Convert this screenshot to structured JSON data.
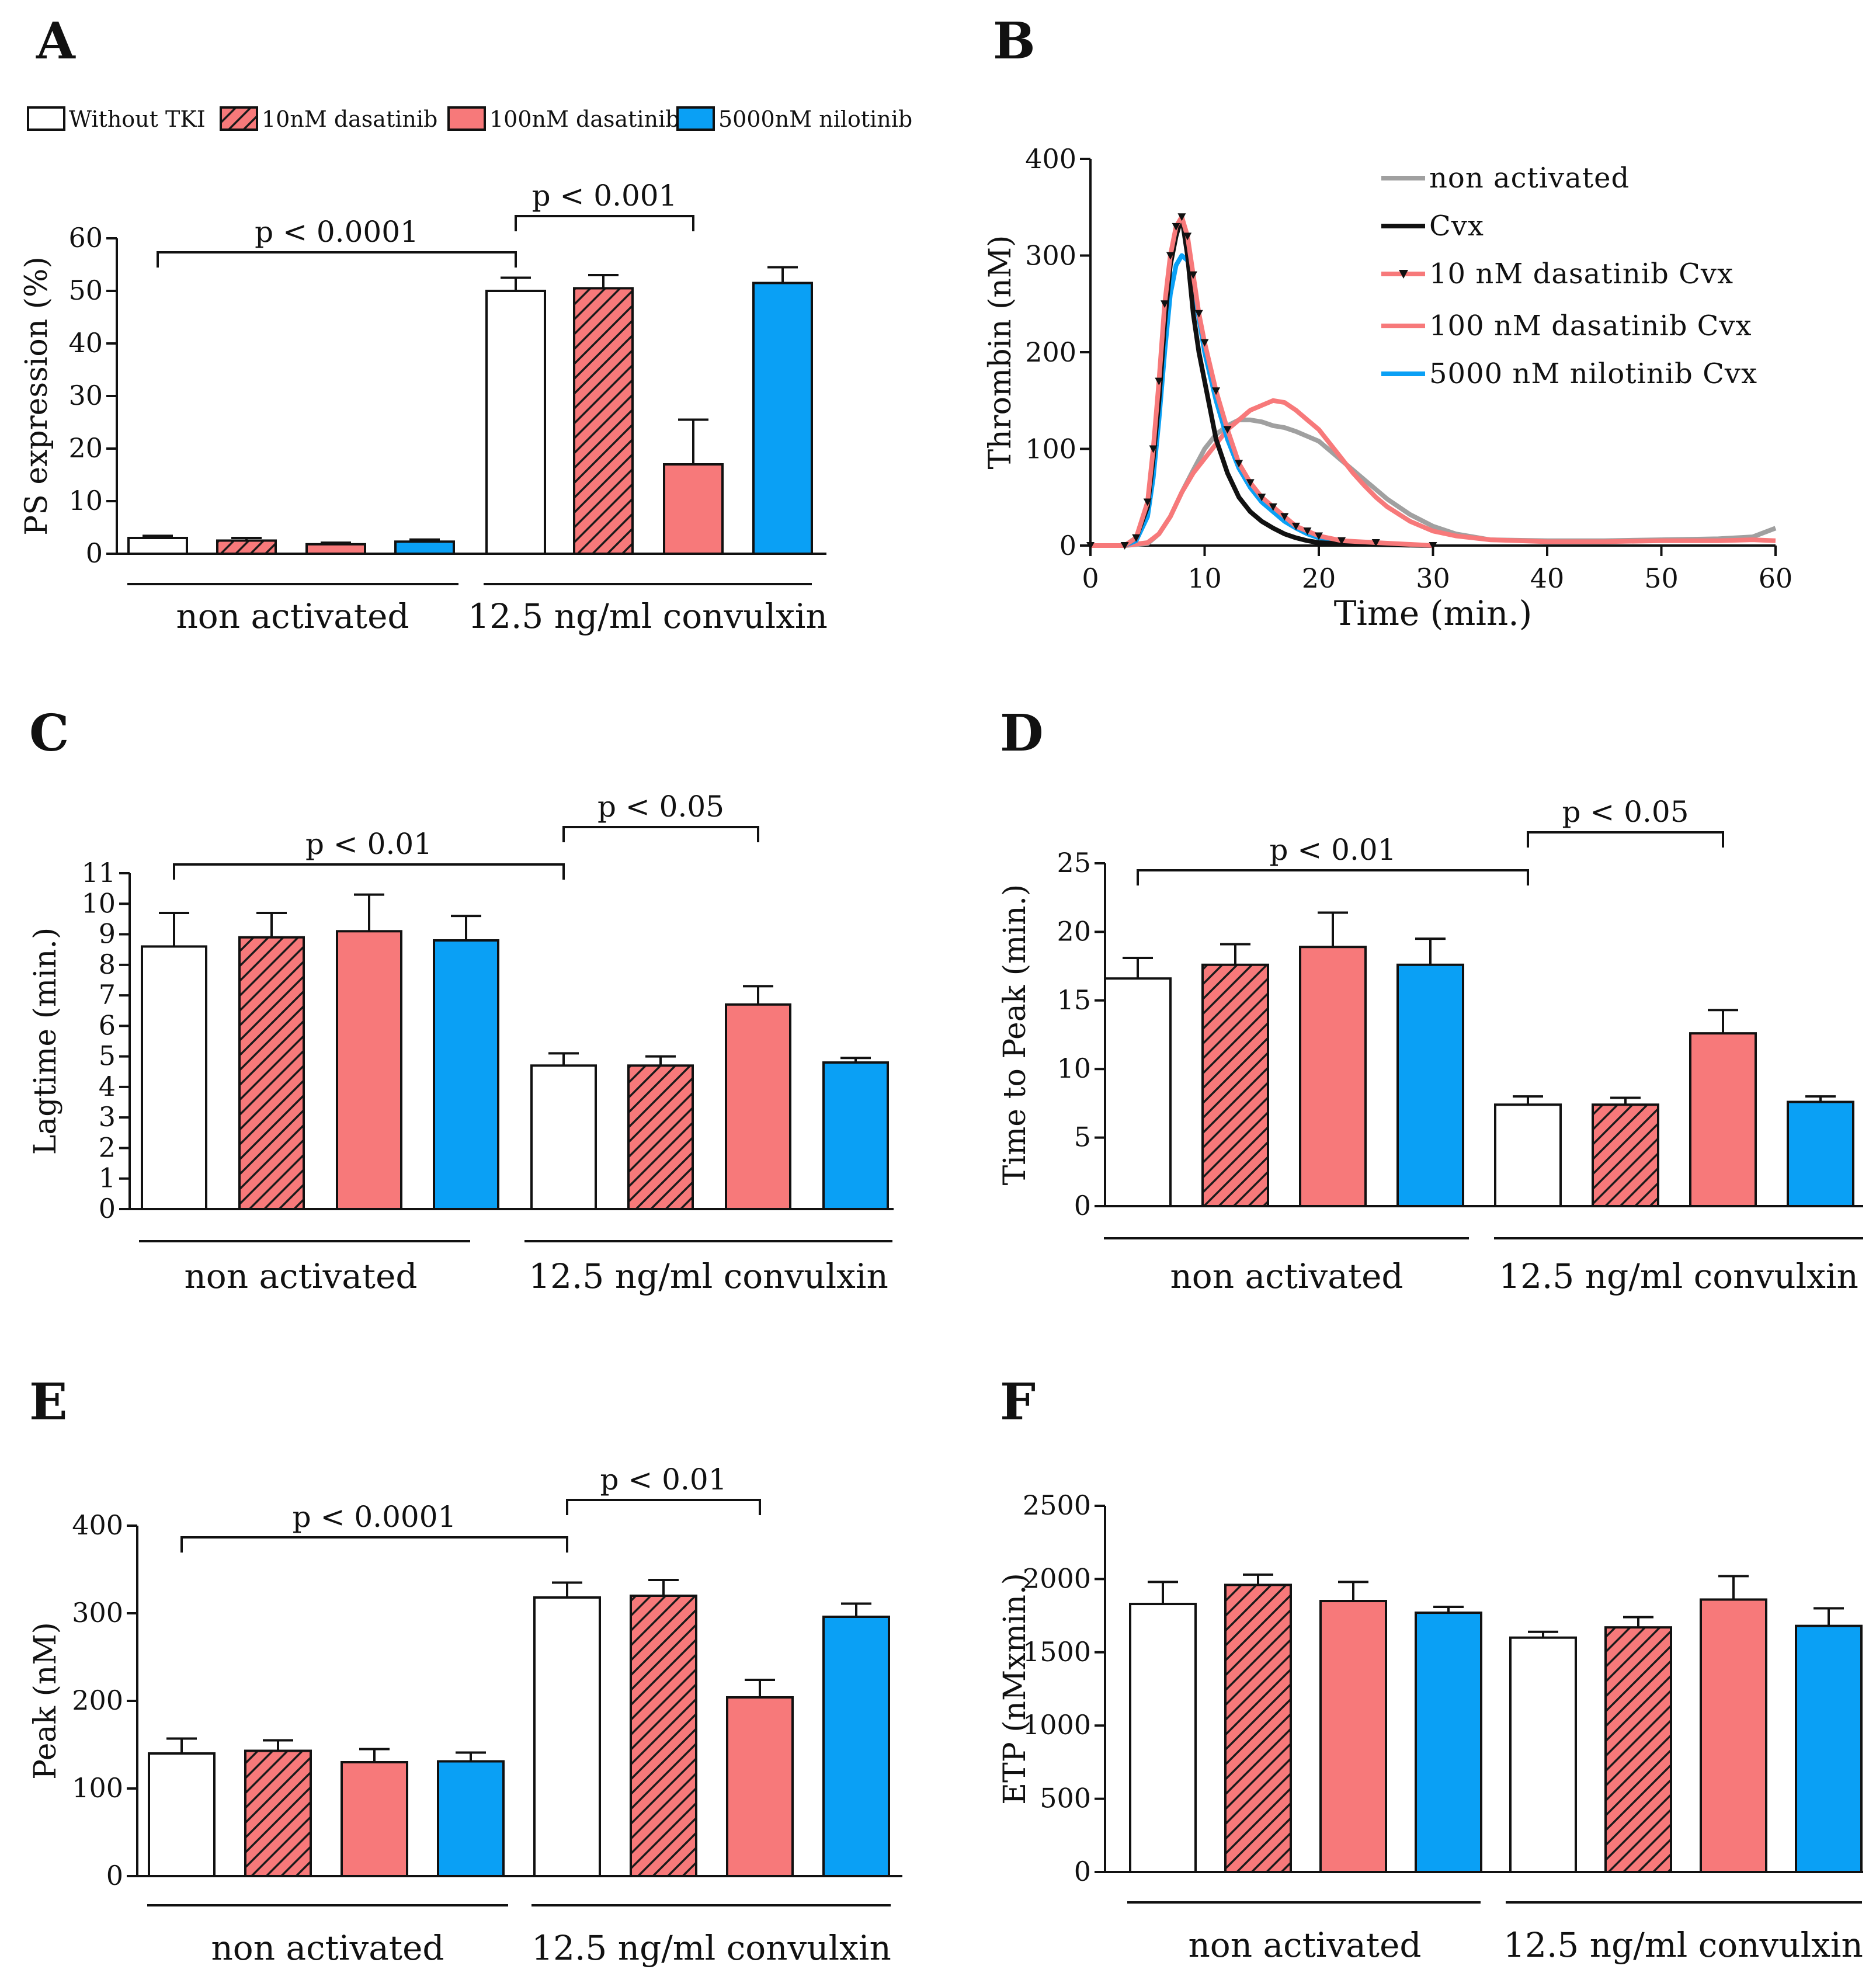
{
  "legend": {
    "items": [
      {
        "label": "Without TKI",
        "pattern": "white"
      },
      {
        "label": "10nM dasatinib",
        "pattern": "hatch"
      },
      {
        "label": "100nM dasatinib",
        "pattern": "salmon"
      },
      {
        "label": "5000nM nilotinib",
        "pattern": "blue"
      }
    ]
  },
  "colors": {
    "salmon": "#f7797a",
    "blue": "#0aa0f5",
    "gray": "#a0a0a0",
    "black": "#111111",
    "white": "#ffffff"
  },
  "chart_data": [
    {
      "panel": "A",
      "type": "bar",
      "ylabel": "PS expression (%)",
      "ylim": [
        0,
        60
      ],
      "yticks": [
        0,
        10,
        20,
        30,
        40,
        50,
        60
      ],
      "groups": [
        "non activated",
        "12.5 ng/ml convulxin"
      ],
      "series": [
        {
          "name": "Without TKI",
          "values": [
            3.0,
            50.0
          ],
          "errors": [
            0.4,
            2.5
          ]
        },
        {
          "name": "10nM dasatinib",
          "values": [
            2.5,
            50.5
          ],
          "errors": [
            0.5,
            2.5
          ]
        },
        {
          "name": "100nM dasatinib",
          "values": [
            1.8,
            17.0
          ],
          "errors": [
            0.3,
            8.5
          ]
        },
        {
          "name": "5000nM nilotinib",
          "values": [
            2.3,
            51.5
          ],
          "errors": [
            0.4,
            3.0
          ]
        }
      ],
      "brackets": [
        {
          "from_bar": 0,
          "to_bar": 4,
          "label": "p < 0.0001"
        },
        {
          "from_bar": 4,
          "to_bar": 6,
          "label": "p < 0.001"
        }
      ]
    },
    {
      "panel": "B",
      "type": "line",
      "xlabel": "Time (min.)",
      "ylabel": "Thrombin (nM)",
      "xlim": [
        0,
        60
      ],
      "ylim": [
        0,
        400
      ],
      "xticks": [
        0,
        10,
        20,
        30,
        40,
        50,
        60
      ],
      "yticks": [
        0,
        100,
        200,
        300,
        400
      ],
      "series": [
        {
          "name": "non activated",
          "color": "#a0a0a0",
          "x": [
            0,
            3,
            5,
            6,
            7,
            8,
            9,
            10,
            11,
            12,
            13,
            14,
            15,
            16,
            17,
            18,
            19,
            20,
            21,
            22,
            23,
            24,
            25,
            26,
            28,
            30,
            32,
            35,
            40,
            45,
            50,
            55,
            58,
            60
          ],
          "y": [
            0,
            0,
            2,
            12,
            30,
            55,
            78,
            100,
            115,
            124,
            130,
            130,
            128,
            124,
            122,
            118,
            113,
            108,
            98,
            88,
            78,
            68,
            58,
            48,
            32,
            20,
            12,
            6,
            5,
            5,
            6,
            7,
            9,
            18
          ]
        },
        {
          "name": "Cvx",
          "color": "#111111",
          "x": [
            0,
            3,
            4,
            5,
            5.5,
            6,
            6.5,
            7,
            7.5,
            8,
            8.5,
            9,
            9.5,
            10,
            11,
            12,
            13,
            14,
            15,
            16,
            17,
            18,
            19,
            20,
            22,
            25,
            30
          ],
          "y": [
            0,
            0,
            8,
            40,
            90,
            150,
            230,
            290,
            320,
            340,
            300,
            240,
            200,
            170,
            110,
            75,
            50,
            35,
            25,
            18,
            12,
            8,
            5,
            3,
            2,
            1,
            0
          ]
        },
        {
          "name": "10 nM dasatinib Cvx",
          "color": "#f7797a",
          "marker": "triangle",
          "x": [
            0,
            3,
            4,
            5,
            5.5,
            6,
            6.5,
            7,
            7.5,
            8,
            8.5,
            9,
            9.5,
            10,
            11,
            12,
            13,
            14,
            15,
            16,
            17,
            18,
            19,
            20,
            22,
            25,
            30
          ],
          "y": [
            0,
            0,
            8,
            45,
            100,
            170,
            250,
            300,
            330,
            340,
            320,
            280,
            240,
            210,
            160,
            120,
            85,
            65,
            50,
            40,
            30,
            20,
            15,
            10,
            5,
            3,
            0
          ]
        },
        {
          "name": "100 nM dasatinib Cvx",
          "color": "#f7797a",
          "x": [
            0,
            3,
            5,
            6,
            7,
            8,
            9,
            10,
            11,
            12,
            13,
            14,
            15,
            16,
            17,
            18,
            19,
            20,
            21,
            22,
            23,
            24,
            25,
            26,
            28,
            30,
            32,
            35,
            40,
            45,
            50,
            55,
            58,
            60
          ],
          "y": [
            0,
            0,
            3,
            12,
            30,
            55,
            75,
            90,
            105,
            120,
            130,
            140,
            145,
            150,
            148,
            140,
            130,
            120,
            105,
            90,
            75,
            62,
            50,
            40,
            25,
            15,
            10,
            6,
            4,
            4,
            5,
            5,
            6,
            5
          ]
        },
        {
          "name": "5000 nM nilotinib Cvx",
          "color": "#0aa0f5",
          "x": [
            0,
            3,
            4,
            5,
            5.5,
            6,
            6.5,
            7,
            7.5,
            8,
            8.5,
            9,
            9.5,
            10,
            11,
            12,
            13,
            14,
            15,
            16,
            17,
            18,
            19,
            20,
            22,
            25,
            30
          ],
          "y": [
            0,
            0,
            5,
            30,
            70,
            130,
            200,
            260,
            290,
            300,
            295,
            270,
            235,
            200,
            150,
            110,
            80,
            60,
            45,
            35,
            25,
            18,
            12,
            8,
            4,
            2,
            0
          ]
        }
      ]
    },
    {
      "panel": "C",
      "type": "bar",
      "ylabel": "Lagtime (min.)",
      "ylim": [
        0,
        11
      ],
      "yticks": [
        0,
        1,
        2,
        3,
        4,
        5,
        6,
        7,
        8,
        9,
        10,
        11
      ],
      "groups": [
        "non activated",
        "12.5 ng/ml convulxin"
      ],
      "series": [
        {
          "name": "Without TKI",
          "values": [
            8.6,
            4.7
          ],
          "errors": [
            1.1,
            0.4
          ]
        },
        {
          "name": "10nM dasatinib",
          "values": [
            8.9,
            4.7
          ],
          "errors": [
            0.8,
            0.3
          ]
        },
        {
          "name": "100nM dasatinib",
          "values": [
            9.1,
            6.7
          ],
          "errors": [
            1.2,
            0.6
          ]
        },
        {
          "name": "5000nM nilotinib",
          "values": [
            8.8,
            4.8
          ],
          "errors": [
            0.8,
            0.15
          ]
        }
      ],
      "brackets": [
        {
          "from_bar": 0,
          "to_bar": 4,
          "label": "p < 0.01"
        },
        {
          "from_bar": 4,
          "to_bar": 6,
          "label": "p < 0.05"
        }
      ]
    },
    {
      "panel": "D",
      "type": "bar",
      "ylabel": "Time to Peak (min.)",
      "ylim": [
        0,
        25
      ],
      "yticks": [
        0,
        5,
        10,
        15,
        20,
        25
      ],
      "groups": [
        "non activated",
        "12.5 ng/ml convulxin"
      ],
      "series": [
        {
          "name": "Without TKI",
          "values": [
            16.6,
            7.4
          ],
          "errors": [
            1.5,
            0.6
          ]
        },
        {
          "name": "10nM dasatinib",
          "values": [
            17.6,
            7.4
          ],
          "errors": [
            1.5,
            0.5
          ]
        },
        {
          "name": "100nM dasatinib",
          "values": [
            18.9,
            12.6
          ],
          "errors": [
            2.5,
            1.7
          ]
        },
        {
          "name": "5000nM nilotinib",
          "values": [
            17.6,
            7.6
          ],
          "errors": [
            1.9,
            0.4
          ]
        }
      ],
      "brackets": [
        {
          "from_bar": 0,
          "to_bar": 4,
          "label": "p < 0.01"
        },
        {
          "from_bar": 4,
          "to_bar": 6,
          "label": "p < 0.05"
        }
      ]
    },
    {
      "panel": "E",
      "type": "bar",
      "ylabel": "Peak (nM)",
      "ylim": [
        0,
        400
      ],
      "yticks": [
        0,
        100,
        200,
        300,
        400
      ],
      "groups": [
        "non activated",
        "12.5 ng/ml convulxin"
      ],
      "series": [
        {
          "name": "Without TKI",
          "values": [
            140,
            318
          ],
          "errors": [
            17,
            17
          ]
        },
        {
          "name": "10nM dasatinib",
          "values": [
            143,
            320
          ],
          "errors": [
            12,
            18
          ]
        },
        {
          "name": "100nM dasatinib",
          "values": [
            130,
            204
          ],
          "errors": [
            15,
            20
          ]
        },
        {
          "name": "5000nM nilotinib",
          "values": [
            131,
            296
          ],
          "errors": [
            10,
            15
          ]
        }
      ],
      "brackets": [
        {
          "from_bar": 0,
          "to_bar": 4,
          "label": "p < 0.0001"
        },
        {
          "from_bar": 4,
          "to_bar": 6,
          "label": "p < 0.01"
        }
      ]
    },
    {
      "panel": "F",
      "type": "bar",
      "ylabel": "ETP (nMxmin.)",
      "ylim": [
        0,
        2500
      ],
      "yticks": [
        0,
        500,
        1000,
        1500,
        2000,
        2500
      ],
      "groups": [
        "non activated",
        "12.5 ng/ml convulxin"
      ],
      "series": [
        {
          "name": "Without TKI",
          "values": [
            1830,
            1600
          ],
          "errors": [
            150,
            40
          ]
        },
        {
          "name": "10nM dasatinib",
          "values": [
            1960,
            1670
          ],
          "errors": [
            70,
            70
          ]
        },
        {
          "name": "100nM dasatinib",
          "values": [
            1850,
            1860
          ],
          "errors": [
            130,
            160
          ]
        },
        {
          "name": "5000nM nilotinib",
          "values": [
            1770,
            1680
          ],
          "errors": [
            40,
            120
          ]
        }
      ],
      "brackets": []
    }
  ]
}
